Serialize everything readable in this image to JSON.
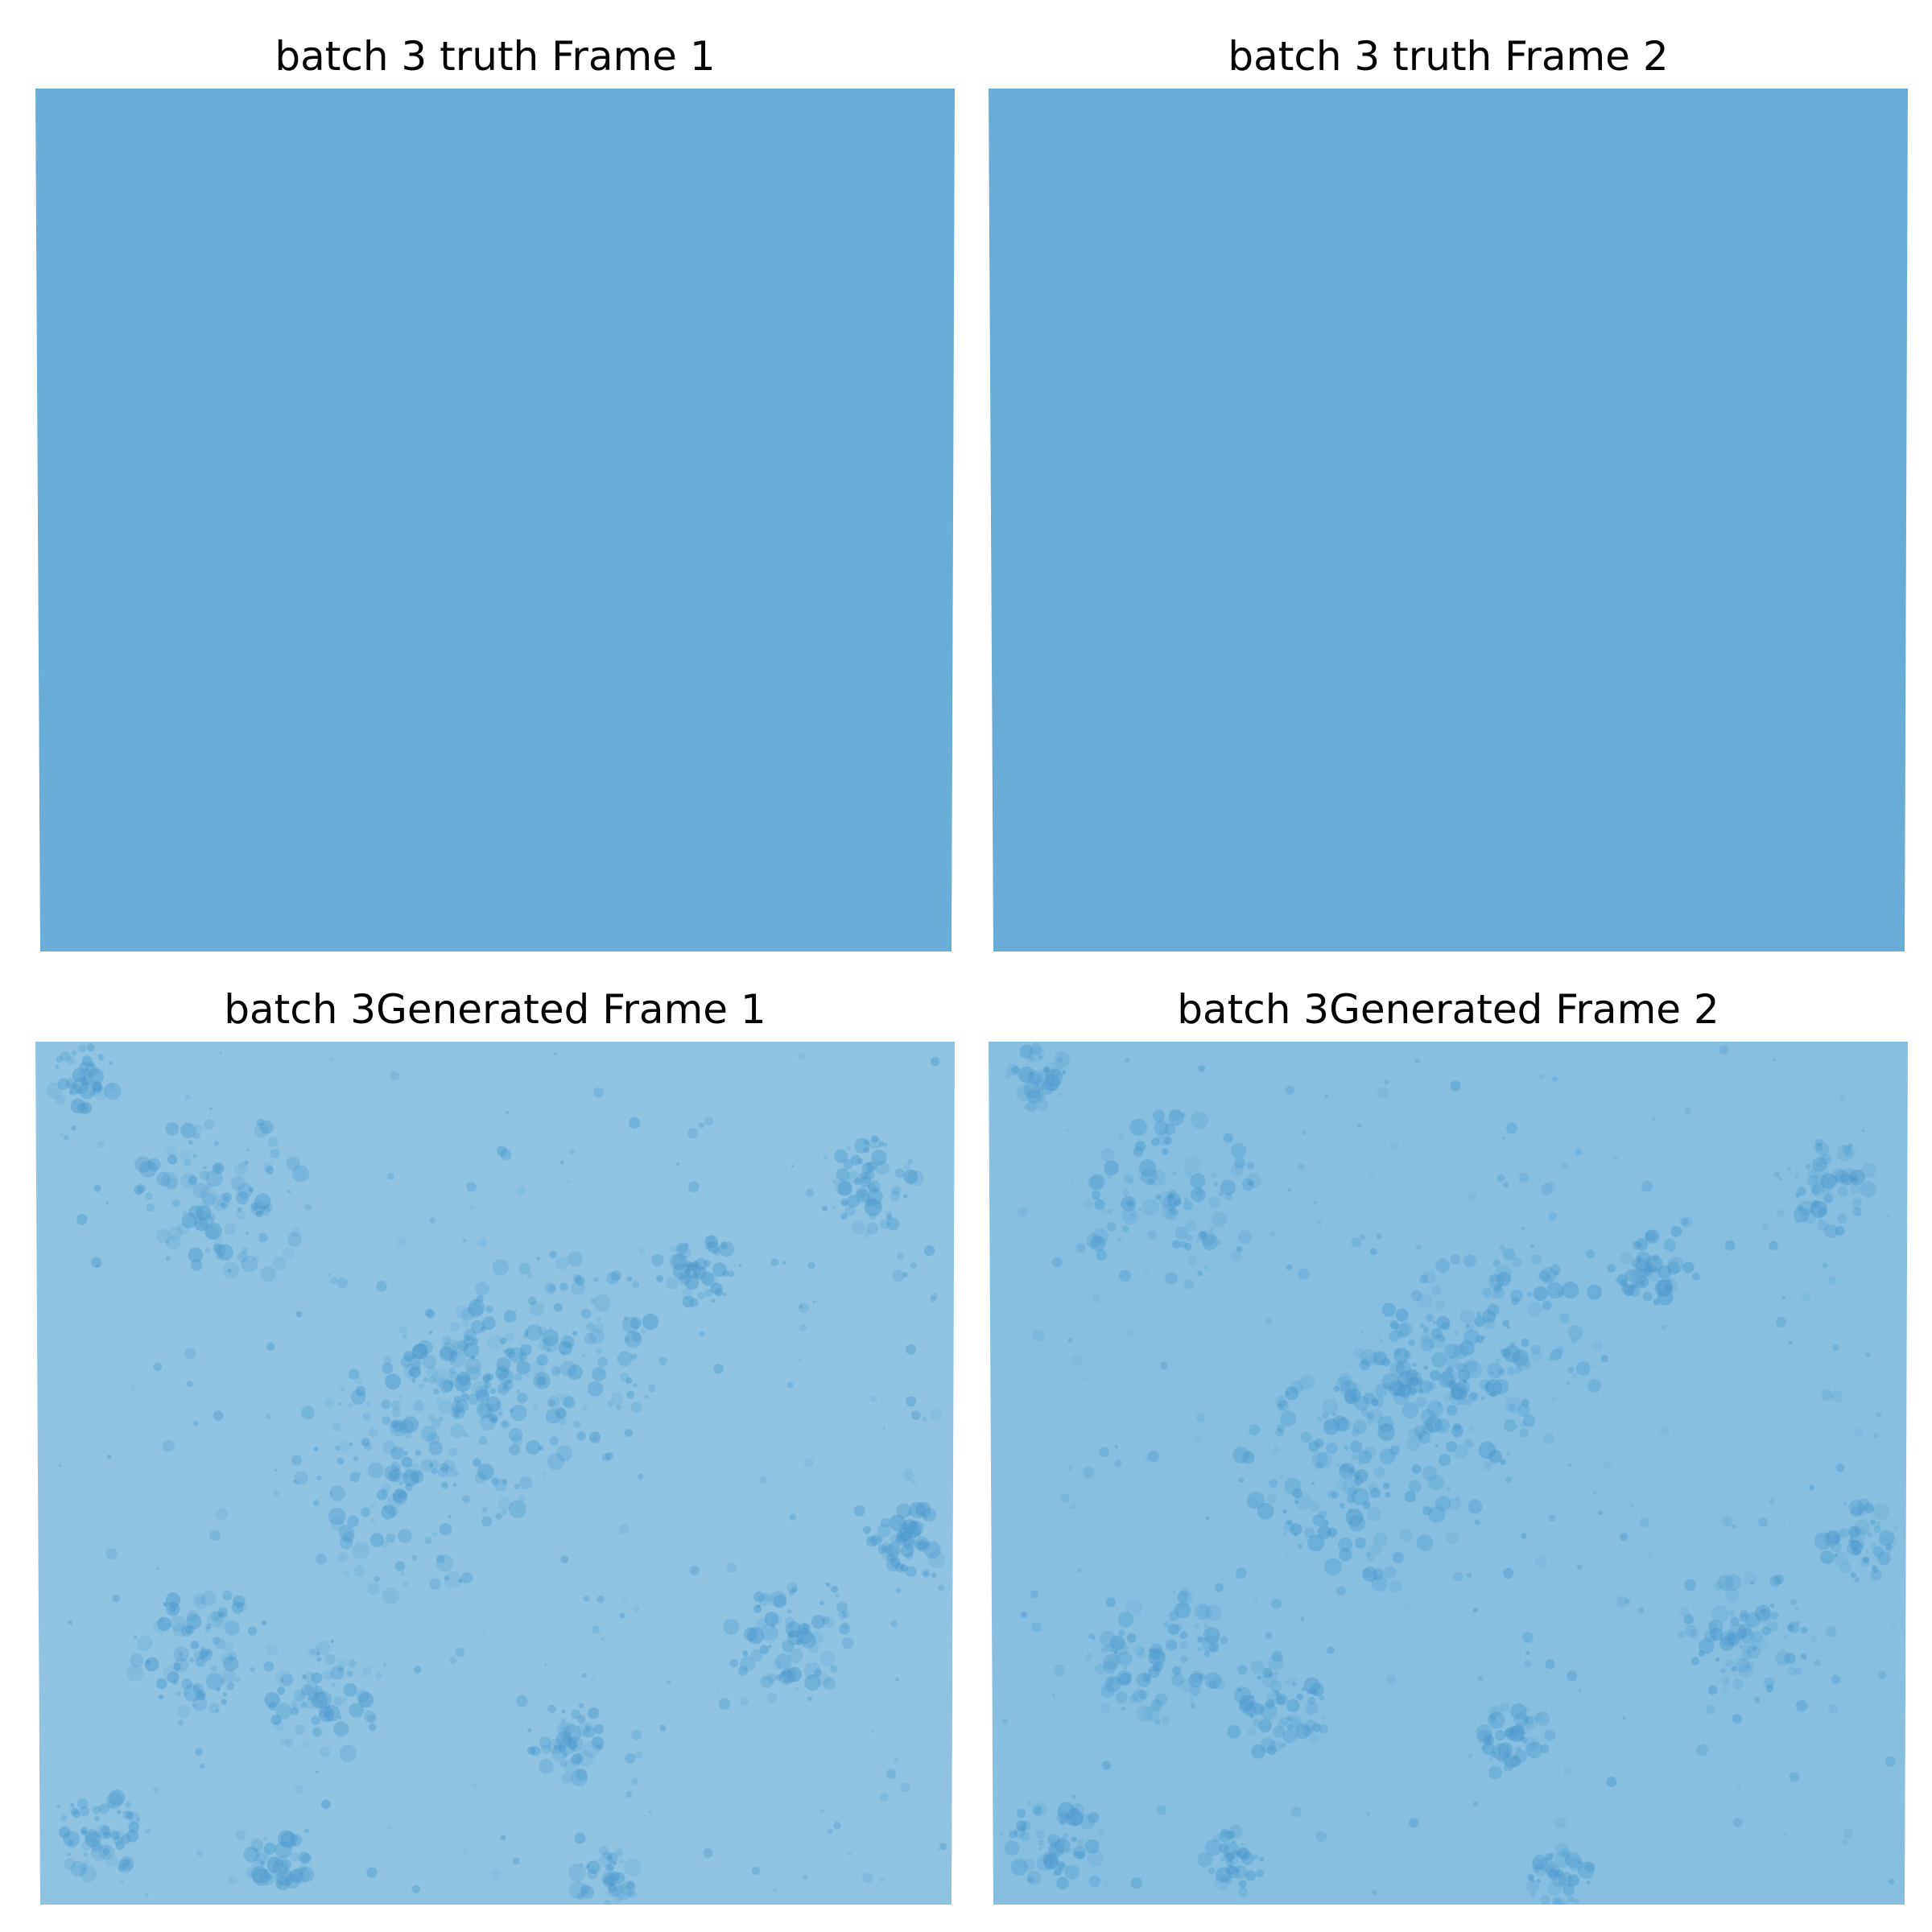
{
  "panels": [
    {
      "title": "batch 3 truth Frame 1",
      "base_color": "#6aadd6",
      "field": "uniform"
    },
    {
      "title": "batch 3 truth Frame 2",
      "base_color": "#6aacd6",
      "field": "uniform"
    },
    {
      "title": "batch 3Generated Frame 1",
      "base_color": "#90c3e2",
      "field": "blotchy",
      "blotch_color": "#4a98cb"
    },
    {
      "title": "batch 3Generated Frame 2",
      "base_color": "#88bfe0",
      "field": "blotchy",
      "blotch_color": "#4a98cb"
    }
  ]
}
